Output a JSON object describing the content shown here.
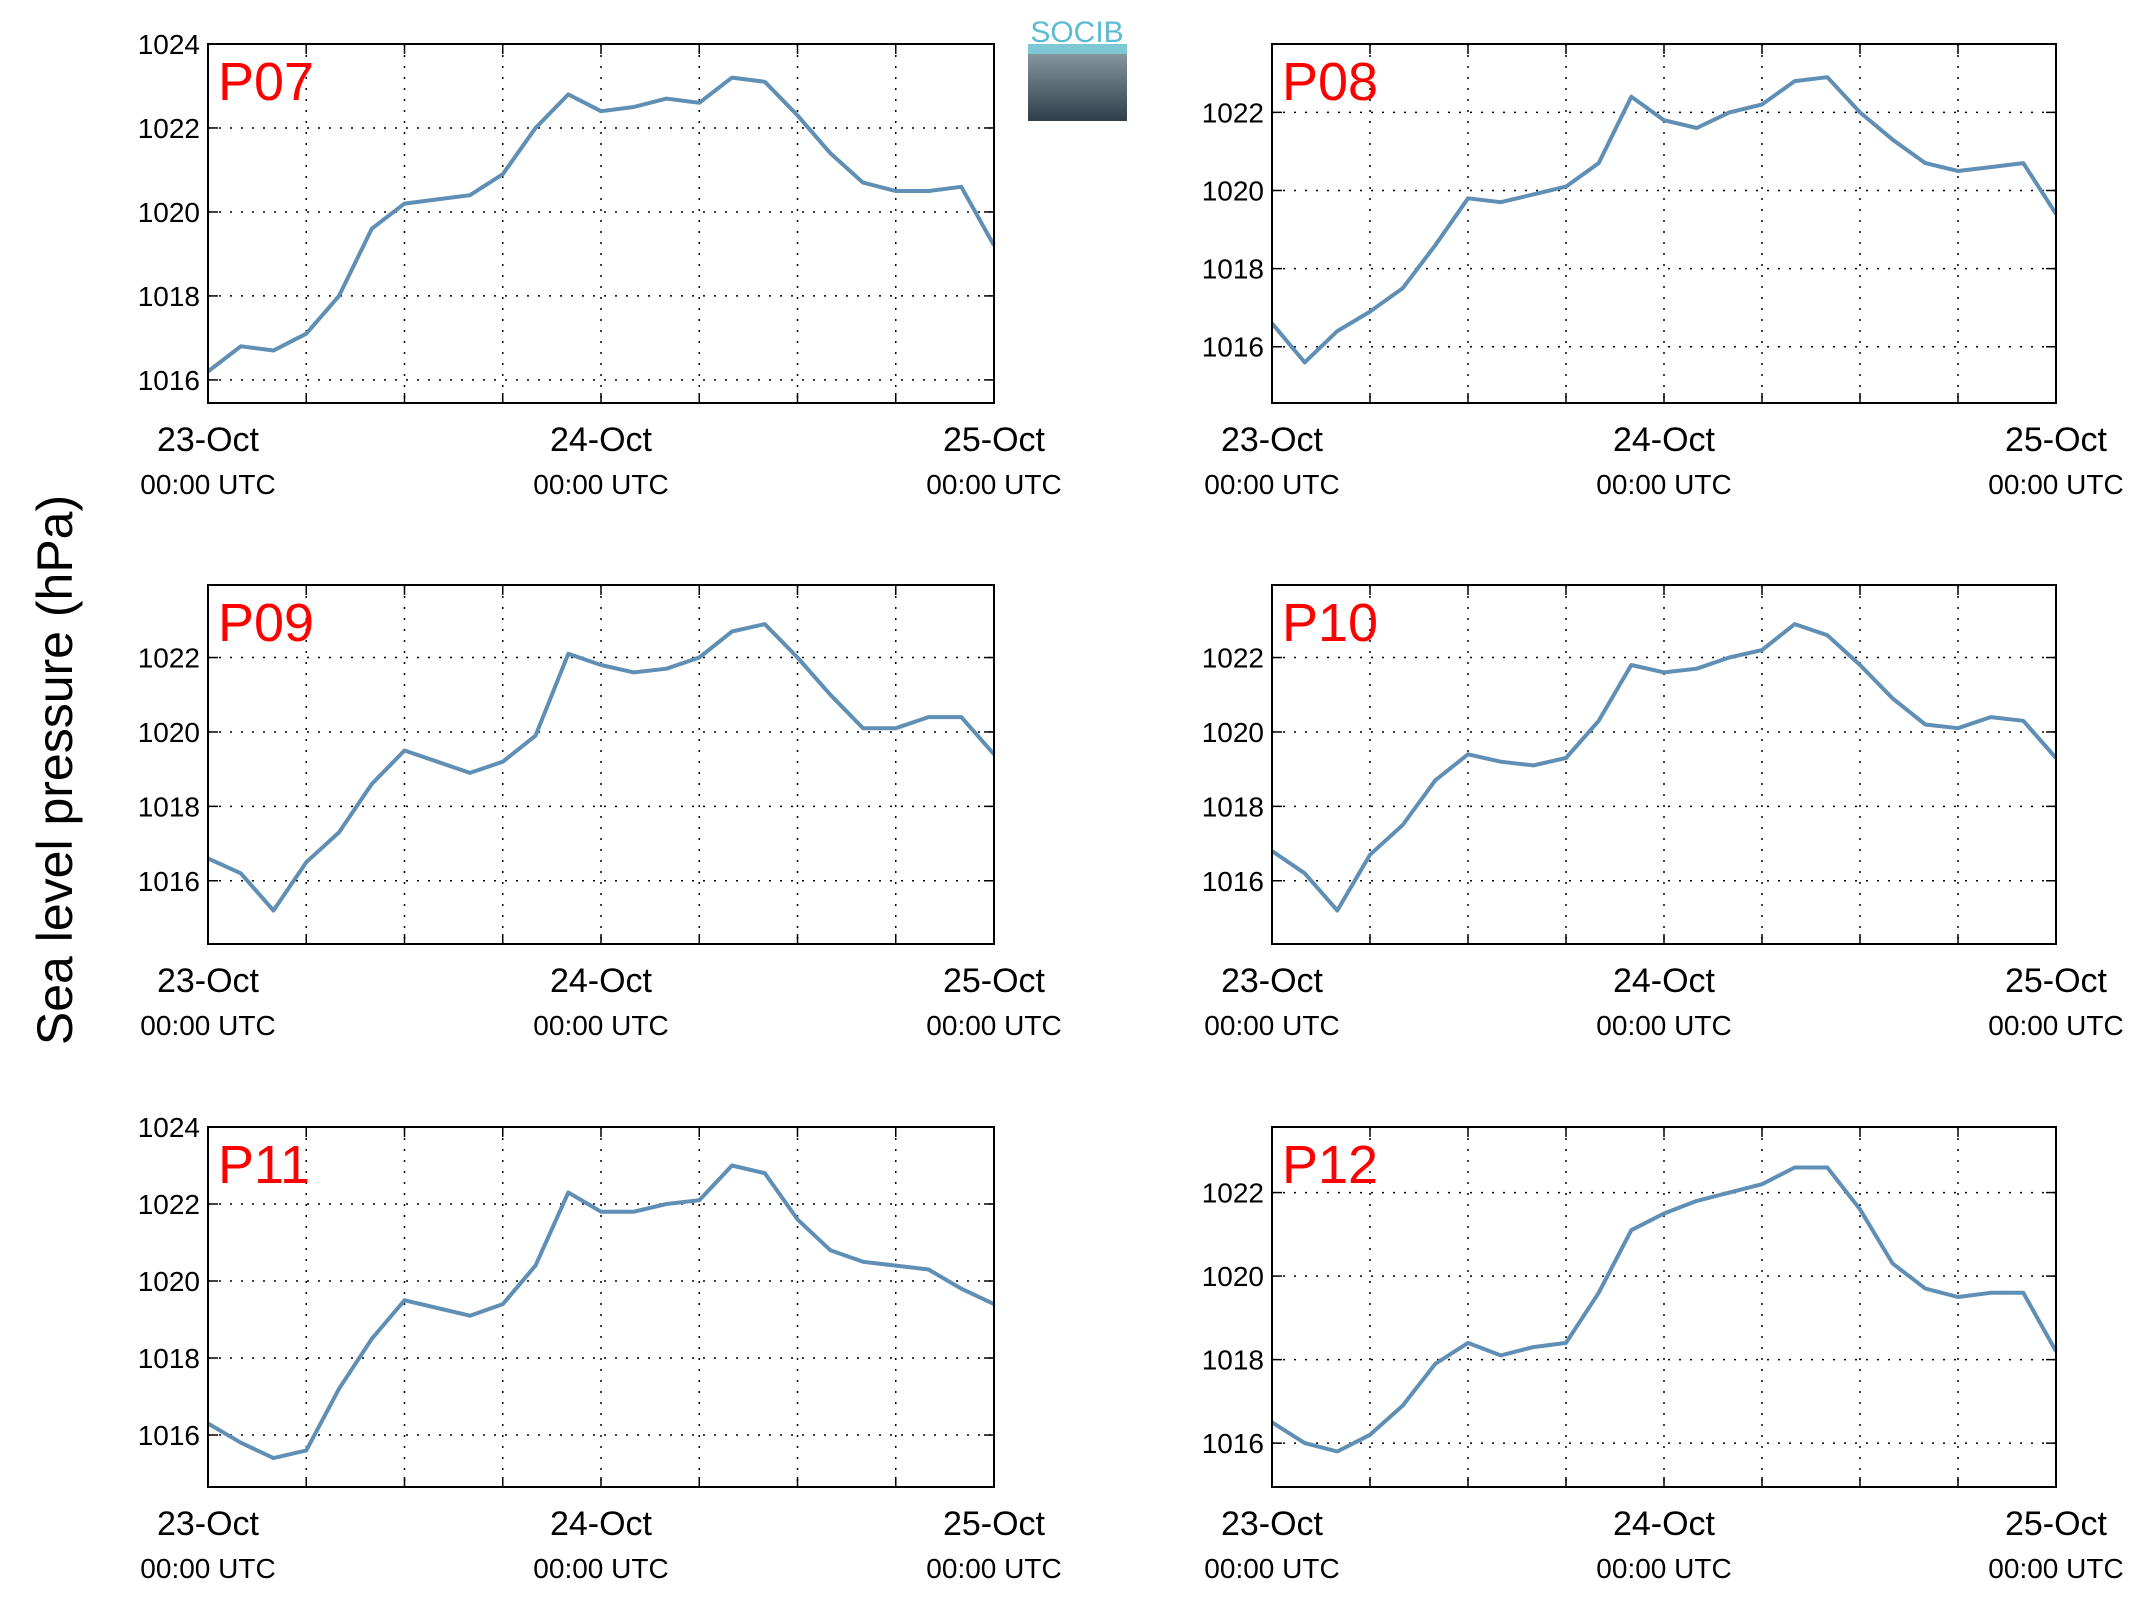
{
  "ylabel": "Sea level pressure (hPa)",
  "logo": "SOCIB",
  "chart_data": [
    {
      "type": "line",
      "title": "P07",
      "color": "#5f8fb4",
      "grid": true,
      "x": [
        0,
        2,
        4,
        6,
        8,
        10,
        12,
        14,
        16,
        18,
        20,
        22,
        24,
        26,
        28,
        30,
        32,
        34,
        36,
        38,
        40,
        42,
        44,
        46,
        48
      ],
      "values": [
        1016.2,
        1016.8,
        1016.7,
        1017.1,
        1018.0,
        1019.6,
        1020.2,
        1020.3,
        1020.4,
        1020.9,
        1022.0,
        1022.8,
        1022.4,
        1022.5,
        1022.7,
        1022.6,
        1023.2,
        1023.1,
        1022.3,
        1021.4,
        1020.7,
        1020.5,
        1020.5,
        1020.6,
        1019.2
      ],
      "xlim": [
        0,
        48
      ],
      "xticks": [
        {
          "value": 0,
          "label": "23-Oct",
          "sublabel": "00:00 UTC"
        },
        {
          "value": 6,
          "label": null
        },
        {
          "value": 12,
          "label": null
        },
        {
          "value": 18,
          "label": null
        },
        {
          "value": 24,
          "label": "24-Oct",
          "sublabel": "00:00 UTC"
        },
        {
          "value": 30,
          "label": null
        },
        {
          "value": 36,
          "label": null
        },
        {
          "value": 42,
          "label": null
        },
        {
          "value": 48,
          "label": "25-Oct",
          "sublabel": "00:00 UTC"
        }
      ],
      "ylim": [
        1015.45,
        1024
      ],
      "yticks": [
        1016,
        1018,
        1020,
        1022,
        1024
      ]
    },
    {
      "type": "line",
      "title": "P08",
      "color": "#5f8fb4",
      "grid": true,
      "x": [
        0,
        2,
        4,
        6,
        8,
        10,
        12,
        14,
        16,
        18,
        20,
        22,
        24,
        26,
        28,
        30,
        32,
        34,
        36,
        38,
        40,
        42,
        44,
        46,
        48
      ],
      "values": [
        1016.6,
        1015.6,
        1016.4,
        1016.9,
        1017.5,
        1018.6,
        1019.8,
        1019.7,
        1019.9,
        1020.1,
        1020.7,
        1022.4,
        1021.8,
        1021.6,
        1022.0,
        1022.2,
        1022.8,
        1022.9,
        1022.0,
        1021.3,
        1020.7,
        1020.5,
        1020.6,
        1020.7,
        1019.4
      ],
      "xlim": [
        0,
        48
      ],
      "xticks": [
        {
          "value": 0,
          "label": "23-Oct",
          "sublabel": "00:00 UTC"
        },
        {
          "value": 6,
          "label": null
        },
        {
          "value": 12,
          "label": null
        },
        {
          "value": 18,
          "label": null
        },
        {
          "value": 24,
          "label": "24-Oct",
          "sublabel": "00:00 UTC"
        },
        {
          "value": 30,
          "label": null
        },
        {
          "value": 36,
          "label": null
        },
        {
          "value": 42,
          "label": null
        },
        {
          "value": 48,
          "label": "25-Oct",
          "sublabel": "00:00 UTC"
        }
      ],
      "ylim": [
        1014.56,
        1023.75
      ],
      "yticks": [
        1016,
        1018,
        1020,
        1022
      ]
    },
    {
      "type": "line",
      "title": "P09",
      "color": "#5f8fb4",
      "grid": true,
      "x": [
        0,
        2,
        4,
        6,
        8,
        10,
        12,
        14,
        16,
        18,
        20,
        22,
        24,
        26,
        28,
        30,
        32,
        34,
        36,
        38,
        40,
        42,
        44,
        46,
        48
      ],
      "values": [
        1016.6,
        1016.2,
        1015.2,
        1016.5,
        1017.3,
        1018.6,
        1019.5,
        1019.2,
        1018.9,
        1019.2,
        1019.9,
        1022.1,
        1021.8,
        1021.6,
        1021.7,
        1022.0,
        1022.7,
        1022.9,
        1022.0,
        1021.0,
        1020.1,
        1020.1,
        1020.4,
        1020.4,
        1019.4
      ],
      "xlim": [
        0,
        48
      ],
      "xticks": [
        {
          "value": 0,
          "label": "23-Oct",
          "sublabel": "00:00 UTC"
        },
        {
          "value": 6,
          "label": null
        },
        {
          "value": 12,
          "label": null
        },
        {
          "value": 18,
          "label": null
        },
        {
          "value": 24,
          "label": "24-Oct",
          "sublabel": "00:00 UTC"
        },
        {
          "value": 30,
          "label": null
        },
        {
          "value": 36,
          "label": null
        },
        {
          "value": 42,
          "label": null
        },
        {
          "value": 48,
          "label": "25-Oct",
          "sublabel": "00:00 UTC"
        }
      ],
      "ylim": [
        1014.3,
        1023.95
      ],
      "yticks": [
        1016,
        1018,
        1020,
        1022
      ]
    },
    {
      "type": "line",
      "title": "P10",
      "color": "#5f8fb4",
      "grid": true,
      "x": [
        0,
        2,
        4,
        6,
        8,
        10,
        12,
        14,
        16,
        18,
        20,
        22,
        24,
        26,
        28,
        30,
        32,
        34,
        36,
        38,
        40,
        42,
        44,
        46,
        48
      ],
      "values": [
        1016.8,
        1016.2,
        1015.2,
        1016.7,
        1017.5,
        1018.7,
        1019.4,
        1019.2,
        1019.1,
        1019.3,
        1020.3,
        1021.8,
        1021.6,
        1021.7,
        1022.0,
        1022.2,
        1022.9,
        1022.6,
        1021.8,
        1020.9,
        1020.2,
        1020.1,
        1020.4,
        1020.3,
        1019.3
      ],
      "xlim": [
        0,
        48
      ],
      "xticks": [
        {
          "value": 0,
          "label": "23-Oct",
          "sublabel": "00:00 UTC"
        },
        {
          "value": 6,
          "label": null
        },
        {
          "value": 12,
          "label": null
        },
        {
          "value": 18,
          "label": null
        },
        {
          "value": 24,
          "label": "24-Oct",
          "sublabel": "00:00 UTC"
        },
        {
          "value": 30,
          "label": null
        },
        {
          "value": 36,
          "label": null
        },
        {
          "value": 42,
          "label": null
        },
        {
          "value": 48,
          "label": "25-Oct",
          "sublabel": "00:00 UTC"
        }
      ],
      "ylim": [
        1014.3,
        1023.95
      ],
      "yticks": [
        1016,
        1018,
        1020,
        1022
      ]
    },
    {
      "type": "line",
      "title": "P11",
      "color": "#5f8fb4",
      "grid": true,
      "x": [
        0,
        2,
        4,
        6,
        8,
        10,
        12,
        14,
        16,
        18,
        20,
        22,
        24,
        26,
        28,
        30,
        32,
        34,
        36,
        38,
        40,
        42,
        44,
        46,
        48
      ],
      "values": [
        1016.3,
        1015.8,
        1015.4,
        1015.6,
        1017.2,
        1018.5,
        1019.5,
        1019.3,
        1019.1,
        1019.4,
        1020.4,
        1022.3,
        1021.8,
        1021.8,
        1022.0,
        1022.1,
        1023.0,
        1022.8,
        1021.6,
        1020.8,
        1020.5,
        1020.4,
        1020.3,
        1019.8,
        1019.4
      ],
      "xlim": [
        0,
        48
      ],
      "xticks": [
        {
          "value": 0,
          "label": "23-Oct",
          "sublabel": "00:00 UTC"
        },
        {
          "value": 6,
          "label": null
        },
        {
          "value": 12,
          "label": null
        },
        {
          "value": 18,
          "label": null
        },
        {
          "value": 24,
          "label": "24-Oct",
          "sublabel": "00:00 UTC"
        },
        {
          "value": 30,
          "label": null
        },
        {
          "value": 36,
          "label": null
        },
        {
          "value": 42,
          "label": null
        },
        {
          "value": 48,
          "label": "25-Oct",
          "sublabel": "00:00 UTC"
        }
      ],
      "ylim": [
        1014.65,
        1024
      ],
      "yticks": [
        1016,
        1018,
        1020,
        1022,
        1024
      ]
    },
    {
      "type": "line",
      "title": "P12",
      "color": "#5f8fb4",
      "grid": true,
      "x": [
        0,
        2,
        4,
        6,
        8,
        10,
        12,
        14,
        16,
        18,
        20,
        22,
        24,
        26,
        28,
        30,
        32,
        34,
        36,
        38,
        40,
        42,
        44,
        46,
        48
      ],
      "values": [
        1016.5,
        1016.0,
        1015.8,
        1016.2,
        1016.9,
        1017.9,
        1018.4,
        1018.1,
        1018.3,
        1018.4,
        1019.6,
        1021.1,
        1021.5,
        1021.8,
        1022.0,
        1022.2,
        1022.6,
        1022.6,
        1021.6,
        1020.3,
        1019.7,
        1019.5,
        1019.6,
        1019.6,
        1018.2
      ],
      "xlim": [
        0,
        48
      ],
      "xticks": [
        {
          "value": 0,
          "label": "23-Oct",
          "sublabel": "00:00 UTC"
        },
        {
          "value": 6,
          "label": null
        },
        {
          "value": 12,
          "label": null
        },
        {
          "value": 18,
          "label": null
        },
        {
          "value": 24,
          "label": "24-Oct",
          "sublabel": "00:00 UTC"
        },
        {
          "value": 30,
          "label": null
        },
        {
          "value": 36,
          "label": null
        },
        {
          "value": 42,
          "label": null
        },
        {
          "value": 48,
          "label": "25-Oct",
          "sublabel": "00:00 UTC"
        }
      ],
      "ylim": [
        1014.95,
        1023.57
      ],
      "yticks": [
        1016,
        1018,
        1020,
        1022
      ]
    }
  ]
}
